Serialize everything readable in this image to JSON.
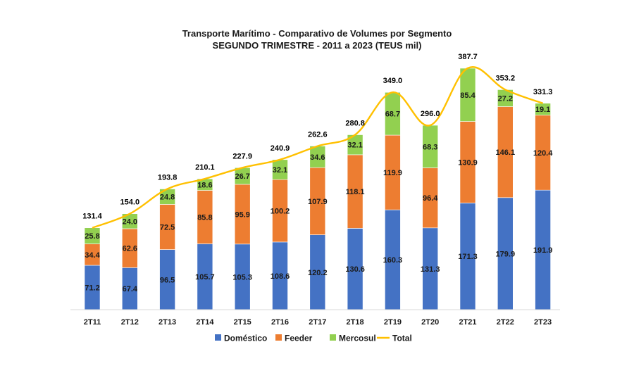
{
  "chart_data": {
    "type": "bar",
    "stacked": true,
    "title": "Transporte Marítimo - Comparativo de Volumes por Segmento",
    "subtitle": "SEGUNDO TRIMESTRE - 2011 a 2023 (TEUS mil)",
    "categories": [
      "2T11",
      "2T12",
      "2T13",
      "2T14",
      "2T15",
      "2T16",
      "2T17",
      "2T18",
      "2T19",
      "2T20",
      "2T21",
      "2T22",
      "2T23"
    ],
    "series": [
      {
        "name": "Doméstico",
        "color": "#4472C4",
        "values": [
          71.2,
          67.4,
          96.5,
          105.7,
          105.3,
          108.6,
          120.2,
          130.6,
          160.3,
          131.3,
          171.3,
          179.9,
          191.9
        ]
      },
      {
        "name": "Feeder",
        "color": "#ED7D31",
        "values": [
          34.4,
          62.6,
          72.5,
          85.8,
          95.9,
          100.2,
          107.9,
          118.1,
          119.9,
          96.4,
          130.9,
          146.1,
          120.4
        ]
      },
      {
        "name": "Mercosul",
        "color": "#92D050",
        "values": [
          25.8,
          24.0,
          24.8,
          18.6,
          26.7,
          32.1,
          34.6,
          32.1,
          68.7,
          68.3,
          85.4,
          27.2,
          19.1
        ]
      }
    ],
    "total": {
      "name": "Total",
      "color": "#FFC000",
      "type": "line",
      "values": [
        131.4,
        154.0,
        193.8,
        210.1,
        227.9,
        240.9,
        262.6,
        280.8,
        349.0,
        296.0,
        387.7,
        353.2,
        331.3
      ]
    },
    "ylim": [
      0,
      400
    ],
    "grid": false,
    "legend": "bottom",
    "xlabel": "",
    "ylabel": ""
  }
}
